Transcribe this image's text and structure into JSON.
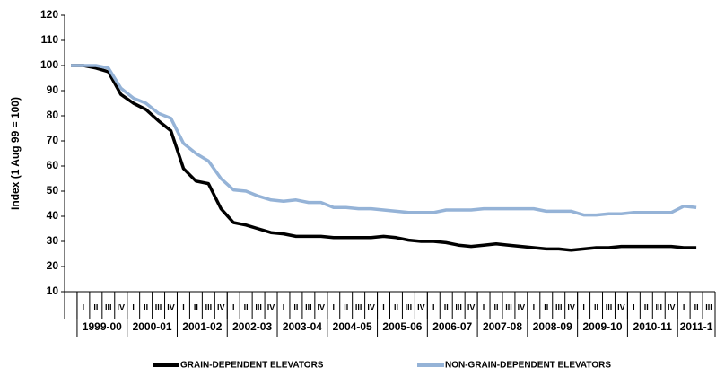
{
  "chart_data": {
    "type": "line",
    "y_label": "Index (1 Aug 99 = 100)",
    "categories": [
      null,
      "I",
      "II",
      "III",
      "IV",
      "I",
      "II",
      "III",
      "IV",
      "I",
      "II",
      "III",
      "IV",
      "I",
      "II",
      "III",
      "IV",
      "I",
      "II",
      "III",
      "IV",
      "I",
      "II",
      "III",
      "IV",
      "I",
      "II",
      "III",
      "IV",
      "I",
      "II",
      "III",
      "IV",
      "I",
      "II",
      "III",
      "IV",
      "I",
      "II",
      "III",
      "IV",
      "I",
      "II",
      "III",
      "IV",
      "I",
      "II",
      "III",
      "IV",
      "I",
      "II",
      "III"
    ],
    "category_groups": [
      "1999-00",
      "2000-01",
      "2001-02",
      "2002-03",
      "2003-04",
      "2004-05",
      "2005-06",
      "2006-07",
      "2007-08",
      "2008-09",
      "2009-10",
      "2010-11",
      "2011-1"
    ],
    "series": [
      {
        "name": "GRAIN-DEPENDENT ELEVATORS",
        "color": "#000000",
        "values": [
          100,
          100,
          99,
          97.5,
          88.5,
          85,
          82.5,
          78,
          74,
          59,
          54,
          53,
          43,
          37.5,
          36.5,
          35,
          33.5,
          33,
          32,
          32,
          32,
          31.5,
          31.5,
          31.5,
          31.5,
          32,
          31.5,
          30.5,
          30,
          30,
          29.5,
          28.5,
          28,
          28.5,
          29,
          28.5,
          28,
          27.5,
          27,
          27,
          26.5,
          27,
          27.5,
          27.5,
          28,
          28,
          28,
          28,
          28,
          27.5,
          27.5,
          null
        ]
      },
      {
        "name": "NON-GRAIN-DEPENDENT ELEVATORS",
        "color": "#95b3d7",
        "values": [
          100,
          100,
          100,
          99,
          91,
          87,
          85,
          81,
          79,
          69,
          65,
          62,
          55,
          50.5,
          50,
          48,
          46.5,
          46,
          46.5,
          45.5,
          45.5,
          43.5,
          43.5,
          43,
          43,
          42.5,
          42,
          41.5,
          41.5,
          41.5,
          42.5,
          42.5,
          42.5,
          43,
          43,
          43,
          43,
          43,
          42,
          42,
          42,
          40.5,
          40.5,
          41,
          41,
          41.5,
          41.5,
          41.5,
          41.5,
          44,
          43.5,
          null
        ]
      }
    ],
    "ylim": [
      10,
      120
    ],
    "yticks": [
      10,
      20,
      30,
      40,
      50,
      60,
      70,
      80,
      90,
      100,
      110,
      120
    ],
    "grid": false
  }
}
